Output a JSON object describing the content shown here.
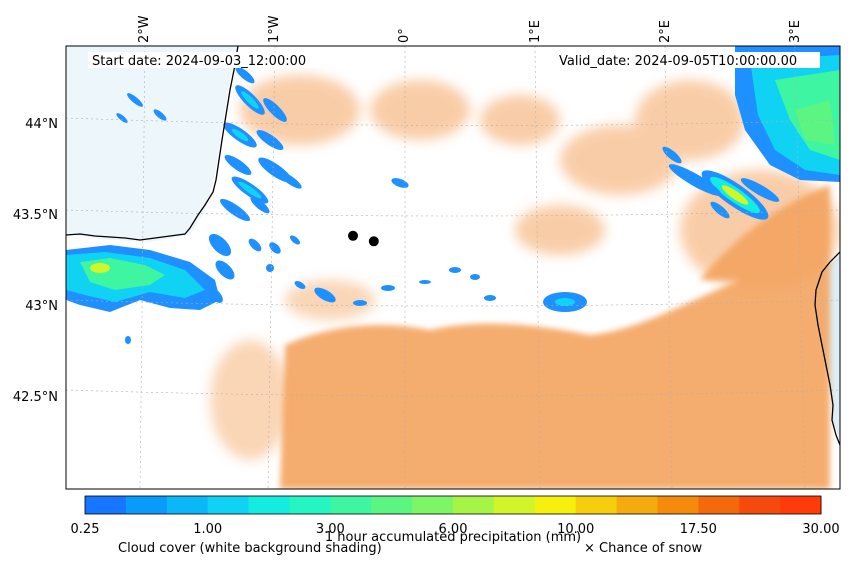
{
  "map": {
    "start_date": "Start date: 2024-09-03_12:00:00",
    "valid_date": "Valid_date: 2024-09-05T10:00:00.00",
    "lon_labels": [
      "2°W",
      "1°W",
      "0°",
      "1°E",
      "2°E",
      "3°E"
    ],
    "lat_labels": [
      "44°N",
      "43.5°N",
      "43°N",
      "42.5°N"
    ],
    "markers": [
      {
        "name": "city-marker-1",
        "lon": -0.4,
        "lat": 43.38
      },
      {
        "name": "city-marker-2",
        "lon": -0.24,
        "lat": 43.35
      }
    ]
  },
  "colorbar": {
    "title": "1 hour accumulated precipitation (mm)",
    "tick_labels": [
      "0.25",
      "1.00",
      "3.00",
      "6.00",
      "10.00",
      "17.50",
      "30.00"
    ],
    "colors": [
      "#1776ff",
      "#0a9af9",
      "#0cb7f7",
      "#10d2f2",
      "#14ece0",
      "#24f5c2",
      "#3ef5a2",
      "#5cf582",
      "#7ef564",
      "#a6f546",
      "#d2f529",
      "#f5f00d",
      "#f5cf0d",
      "#f5ab0d",
      "#f58b0d",
      "#f5690d",
      "#f54a0d",
      "#ff3b0a"
    ]
  },
  "legend": {
    "cloud_cover": "Cloud cover (white background shading)",
    "snow": "× Chance of snow"
  },
  "colors": {
    "cloud": "#f4a460",
    "sea": "#d6ecf5",
    "precip_light": "#1e90ff",
    "precip_mid": "#00e5ff",
    "precip_high": "#7cfc7c"
  }
}
